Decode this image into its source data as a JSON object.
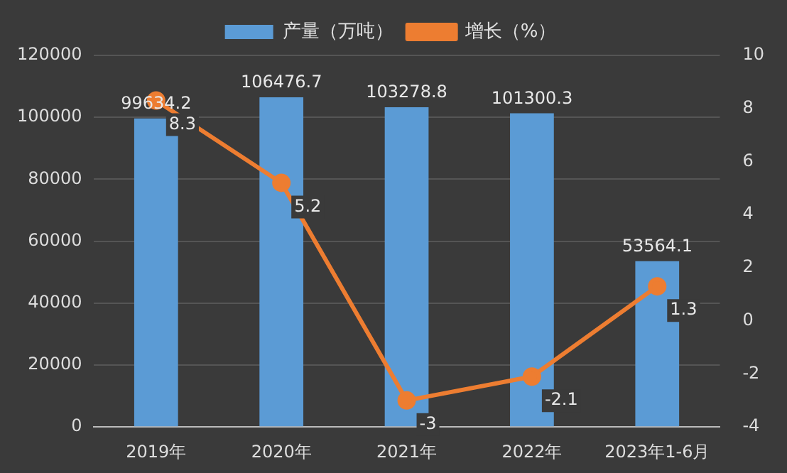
{
  "chart_data": {
    "type": "bar",
    "categories": [
      "2019年",
      "2020年",
      "2021年",
      "2022年",
      "2023年1-6月"
    ],
    "series": [
      {
        "name": "产量（万吨）",
        "color": "#5b9bd5",
        "values": [
          99634.2,
          106476.7,
          103278.8,
          101300.3,
          53564.1
        ]
      },
      {
        "name": "增长（%）",
        "type": "line",
        "axis": "y2",
        "color": "#ed7d31",
        "values": [
          8.3,
          5.2,
          -3,
          -2.1,
          1.3
        ]
      }
    ],
    "ylim": [
      0,
      120000
    ],
    "yticks": [
      0,
      20000,
      40000,
      60000,
      80000,
      100000,
      120000
    ],
    "y2lim": [
      -4,
      10
    ],
    "y2ticks": [
      -4,
      -2,
      0,
      2,
      4,
      6,
      8,
      10
    ],
    "grid": "y",
    "legend": "top",
    "marker": "circle",
    "data_labels": true
  }
}
